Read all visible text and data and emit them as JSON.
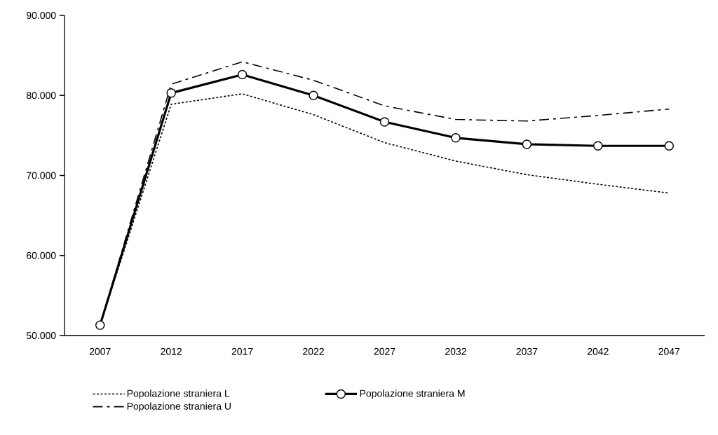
{
  "chart_data": {
    "type": "line",
    "categories": [
      "2007",
      "2012",
      "2017",
      "2022",
      "2027",
      "2032",
      "2037",
      "2042",
      "2047"
    ],
    "ylim": [
      50000,
      90000
    ],
    "yticks": [
      {
        "value": 50000,
        "label": "50.000"
      },
      {
        "value": 60000,
        "label": "60.000"
      },
      {
        "value": 70000,
        "label": "70.000"
      },
      {
        "value": 80000,
        "label": "80.000"
      },
      {
        "value": 90000,
        "label": "90.000"
      }
    ],
    "grid": false,
    "legend": "bottom",
    "series": [
      {
        "name": "Popolazione straniera L",
        "color": "#000000",
        "line_style": "dotted",
        "marker": "none",
        "values": [
          51300,
          78900,
          80200,
          77600,
          74100,
          71800,
          70100,
          68900,
          67800
        ]
      },
      {
        "name": "Popolazione straniera M",
        "color": "#000000",
        "line_style": "solid",
        "marker": "circle",
        "values": [
          51300,
          80300,
          82600,
          80000,
          76700,
          74700,
          73900,
          73700,
          73700
        ]
      },
      {
        "name": "Popolazione straniera U",
        "color": "#000000",
        "line_style": "dashdot",
        "marker": "none",
        "values": [
          51300,
          81400,
          84200,
          81900,
          78700,
          77000,
          76800,
          77500,
          78300
        ]
      }
    ]
  }
}
